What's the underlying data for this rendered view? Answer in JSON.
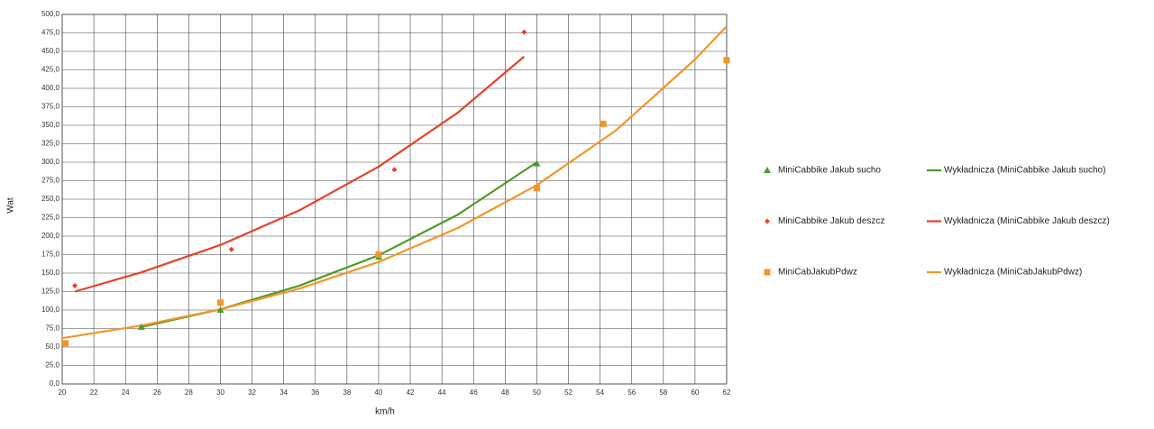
{
  "chart_data": {
    "type": "scatter",
    "xlabel": "km/h",
    "ylabel": "Wat",
    "xlim": [
      20,
      62
    ],
    "xticks": [
      20,
      22,
      24,
      26,
      28,
      30,
      32,
      34,
      36,
      38,
      40,
      42,
      44,
      46,
      48,
      50,
      52,
      54,
      56,
      58,
      60,
      62
    ],
    "ylim": [
      0,
      500
    ],
    "yticks": [
      {
        "value": 0,
        "label": "0,0"
      },
      {
        "value": 25,
        "label": "25,0"
      },
      {
        "value": 50,
        "label": "50,0"
      },
      {
        "value": 75,
        "label": "75,0"
      },
      {
        "value": 100,
        "label": "100,0"
      },
      {
        "value": 125,
        "label": "125,0"
      },
      {
        "value": 150,
        "label": "150,0"
      },
      {
        "value": 175,
        "label": "175,0"
      },
      {
        "value": 200,
        "label": "200,0"
      },
      {
        "value": 225,
        "label": "225,0"
      },
      {
        "value": 250,
        "label": "250,0"
      },
      {
        "value": 275,
        "label": "275,0"
      },
      {
        "value": 300,
        "label": "300,0"
      },
      {
        "value": 325,
        "label": "325,0"
      },
      {
        "value": 350,
        "label": "350,0"
      },
      {
        "value": 375,
        "label": "375,0"
      },
      {
        "value": 400,
        "label": "400,0"
      },
      {
        "value": 425,
        "label": "425,0"
      },
      {
        "value": 450,
        "label": "450,0"
      },
      {
        "value": 475,
        "label": "475,0"
      },
      {
        "value": 500,
        "label": "500,0"
      }
    ],
    "grid": true,
    "legend": "right",
    "series": [
      {
        "name": "MiniCabbike Jakub sucho",
        "mode": "markers",
        "marker": "triangle",
        "color": "#4e9a2a",
        "x": [
          25,
          30,
          40,
          50
        ],
        "values": [
          77,
          100,
          172,
          298
        ]
      },
      {
        "name": "Wykładnicza (MiniCabbike Jakub sucho)",
        "mode": "line",
        "color": "#4e9a2a",
        "x": [
          25,
          30,
          35,
          40,
          45,
          50
        ],
        "values": [
          77,
          101,
          133,
          174,
          229,
          300
        ]
      },
      {
        "name": "MiniCabbike Jakub deszcz",
        "mode": "markers",
        "marker": "diamond",
        "color": "#e8412a",
        "x": [
          20.8,
          30.7,
          41,
          49.2
        ],
        "values": [
          133,
          182,
          290,
          476
        ]
      },
      {
        "name": "Wykładnicza (MiniCabbike Jakub deszcz)",
        "mode": "line",
        "color": "#e8412a",
        "x": [
          20.8,
          25,
          30,
          35,
          40,
          45,
          49.2
        ],
        "values": [
          125,
          151,
          188,
          235,
          294,
          367,
          443
        ]
      },
      {
        "name": "MiniCabJakubPdwz",
        "mode": "markers",
        "marker": "square",
        "color": "#f4952a",
        "x": [
          20.2,
          30,
          40,
          50,
          54.2,
          62
        ],
        "values": [
          55,
          110,
          175,
          265,
          352,
          438
        ]
      },
      {
        "name": "Wykładnicza (MiniCabJakubPdwz)",
        "mode": "line",
        "color": "#f4952a",
        "x": [
          20,
          25,
          30,
          35,
          40,
          45,
          50,
          55,
          60,
          62
        ],
        "values": [
          62,
          79,
          101,
          129,
          165,
          211,
          269,
          343,
          439,
          484
        ]
      }
    ]
  }
}
